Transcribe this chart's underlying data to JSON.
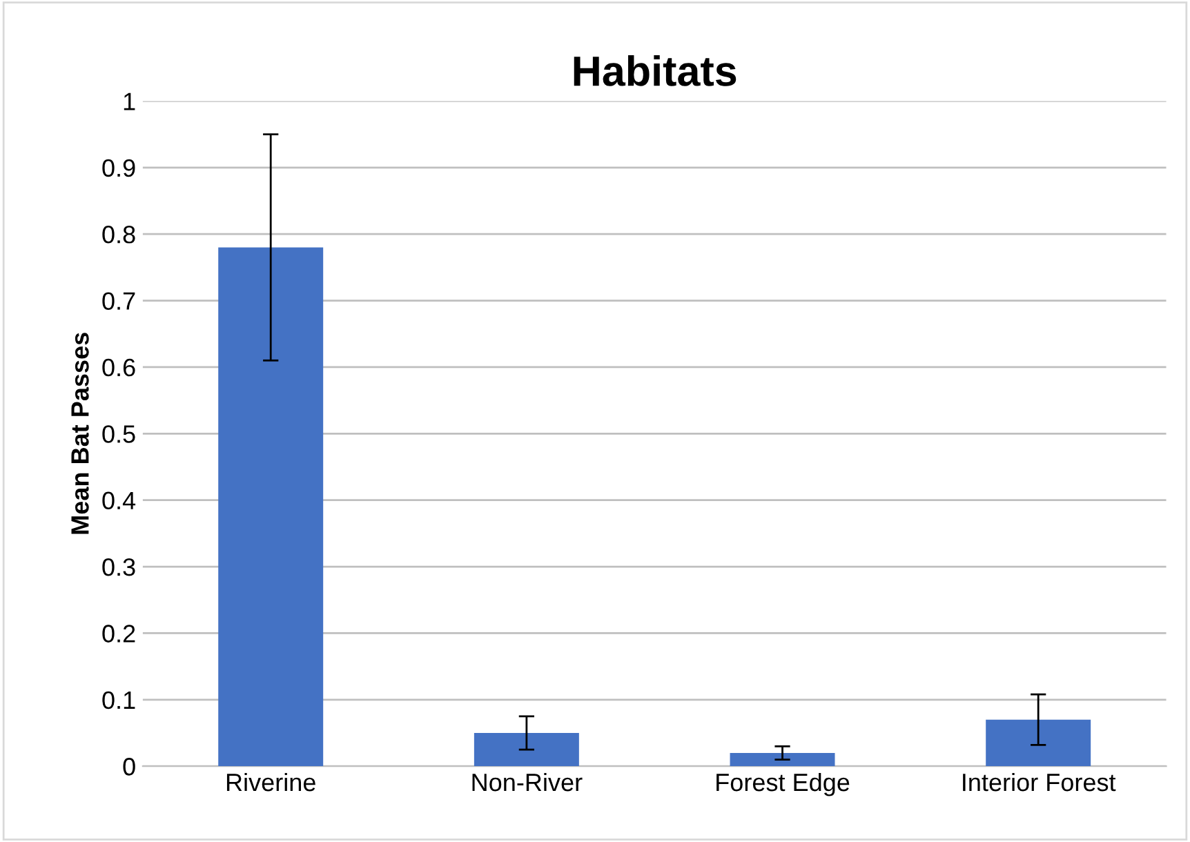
{
  "chart_data": {
    "type": "bar",
    "title": "Habitats",
    "ylabel": "Mean Bat Passes",
    "categories": [
      "Riverine",
      "Non-River",
      "Forest Edge",
      "Interior Forest"
    ],
    "values": [
      0.78,
      0.05,
      0.02,
      0.07
    ],
    "errors": [
      0.17,
      0.025,
      0.01,
      0.038
    ],
    "color": "#4472c4",
    "ylim": [
      0,
      1
    ],
    "yticks": [
      0,
      0.1,
      0.2,
      0.3,
      0.4,
      0.5,
      0.6,
      0.7,
      0.8,
      0.9,
      1
    ],
    "grid": "y",
    "legend": false
  }
}
